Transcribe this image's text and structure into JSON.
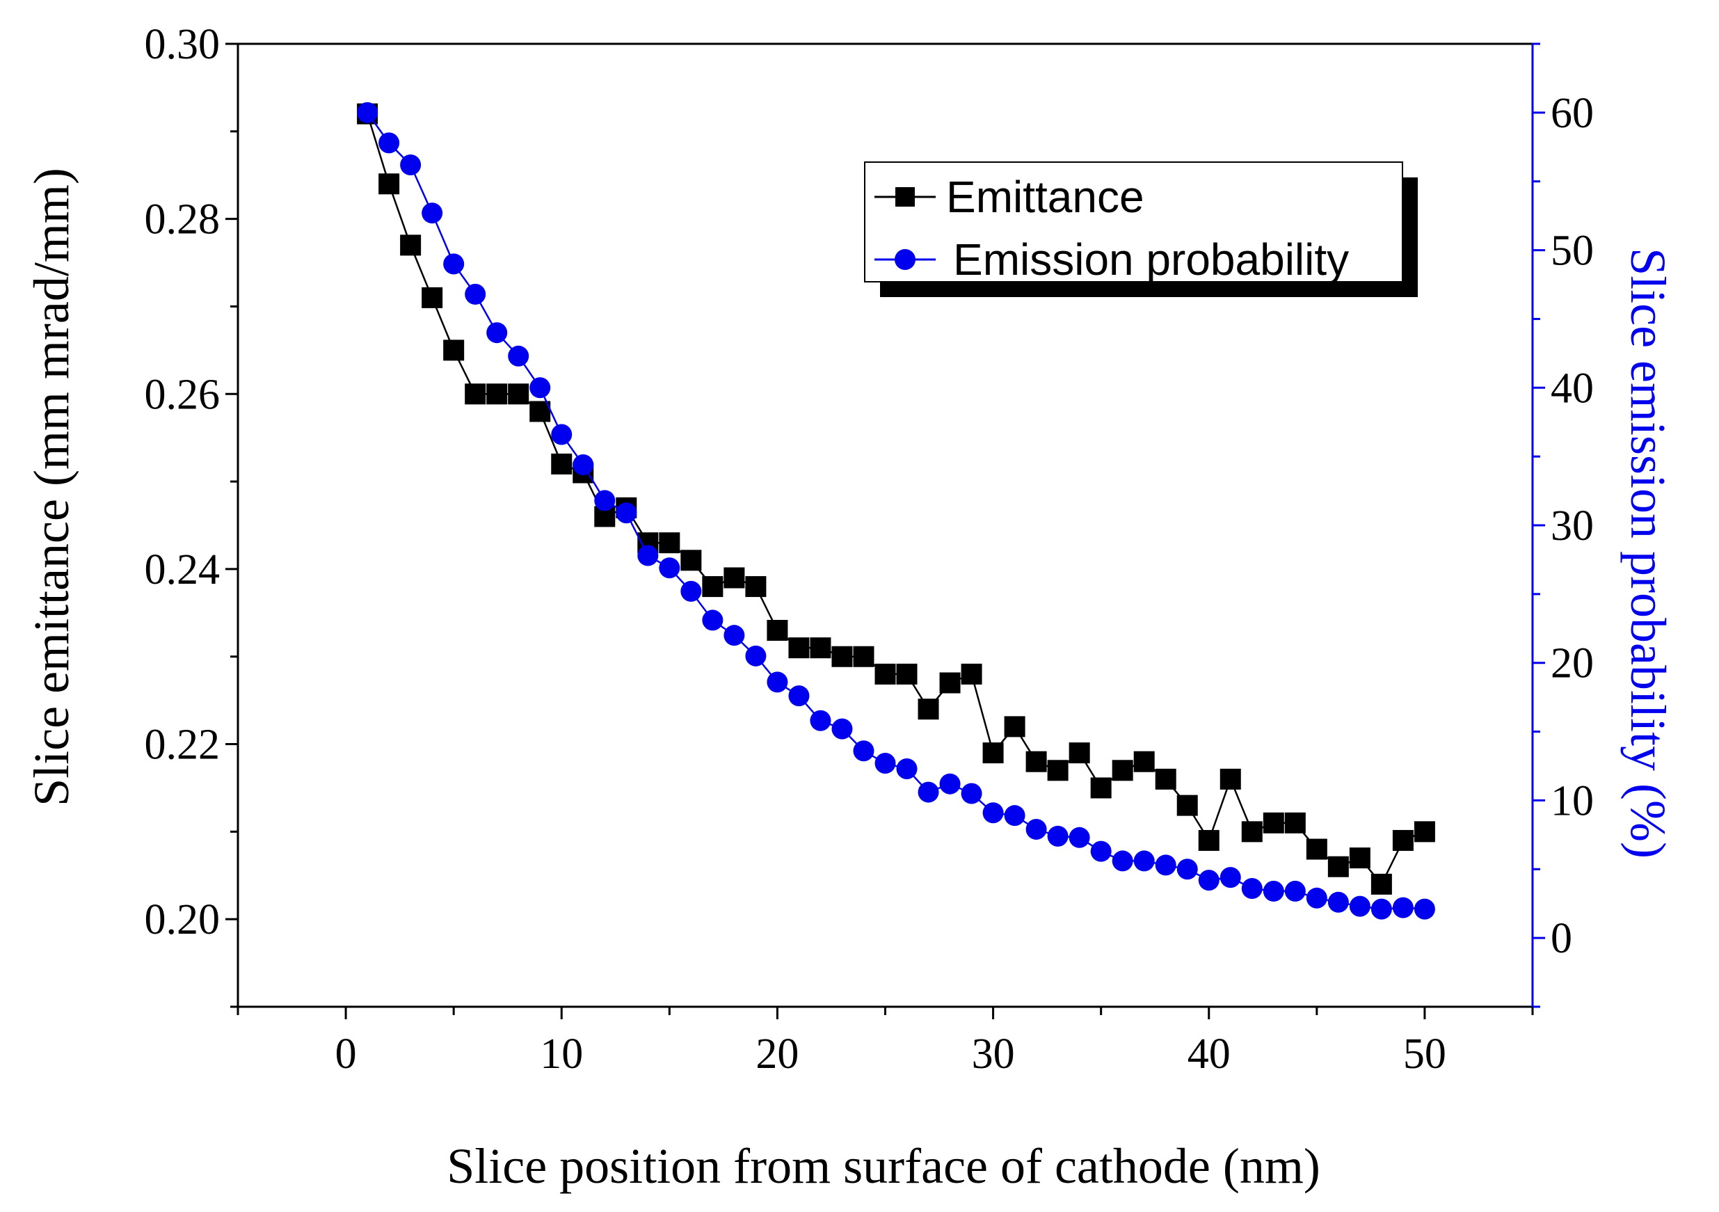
{
  "chart_data": {
    "type": "line",
    "title": "",
    "xlabel": "Slice position from surface of cathode (nm)",
    "ylabel_left": "Slice emittance (mm mrad/mm)",
    "ylabel_right": "Slice emission probability (%)",
    "xlim": [
      -5,
      55
    ],
    "ylim_left": [
      0.19,
      0.3
    ],
    "ylim_right": [
      -5,
      65
    ],
    "x_ticks": [
      0,
      10,
      20,
      30,
      40,
      50
    ],
    "y_left_ticks": [
      "0.20",
      "0.22",
      "0.24",
      "0.26",
      "0.28",
      "0.30"
    ],
    "y_right_ticks": [
      "0",
      "10",
      "20",
      "30",
      "40",
      "50",
      "60"
    ],
    "grid": false,
    "legend_position": "top-right",
    "x": [
      1,
      2,
      3,
      4,
      5,
      6,
      7,
      8,
      9,
      10,
      11,
      12,
      13,
      14,
      15,
      16,
      17,
      18,
      19,
      20,
      21,
      22,
      23,
      24,
      25,
      26,
      27,
      28,
      29,
      30,
      31,
      32,
      33,
      34,
      35,
      36,
      37,
      38,
      39,
      40,
      41,
      42,
      43,
      44,
      45,
      46,
      47,
      48,
      49,
      50
    ],
    "series": [
      {
        "name": "Emittance",
        "axis": "left",
        "color": "#000000",
        "marker": "square",
        "values": [
          0.292,
          0.284,
          0.277,
          0.271,
          0.265,
          0.26,
          0.26,
          0.26,
          0.258,
          0.252,
          0.251,
          0.246,
          0.247,
          0.243,
          0.243,
          0.241,
          0.238,
          0.239,
          0.238,
          0.233,
          0.231,
          0.231,
          0.23,
          0.23,
          0.228,
          0.228,
          0.224,
          0.227,
          0.228,
          0.219,
          0.222,
          0.218,
          0.217,
          0.219,
          0.215,
          0.217,
          0.218,
          0.216,
          0.213,
          0.209,
          0.216,
          0.21,
          0.211,
          0.211,
          0.208,
          0.206,
          0.207,
          0.204,
          0.209,
          0.21
        ]
      },
      {
        "name": "Emission probability",
        "axis": "right",
        "color": "#0000ee",
        "marker": "circle",
        "values": [
          60.0,
          57.8,
          56.2,
          52.7,
          49.0,
          46.8,
          44.0,
          42.3,
          40.0,
          36.6,
          34.4,
          31.8,
          30.9,
          27.8,
          26.9,
          25.2,
          23.1,
          22.0,
          20.5,
          18.6,
          17.6,
          15.8,
          15.2,
          13.6,
          12.7,
          12.3,
          10.6,
          11.2,
          10.5,
          9.1,
          8.9,
          7.9,
          7.4,
          7.3,
          6.3,
          5.6,
          5.6,
          5.3,
          5.0,
          4.2,
          4.4,
          3.6,
          3.4,
          3.4,
          2.9,
          2.6,
          2.3,
          2.1,
          2.2,
          2.1
        ]
      }
    ],
    "axis_colors": {
      "left": "#000000",
      "right": "#0000ee"
    }
  }
}
